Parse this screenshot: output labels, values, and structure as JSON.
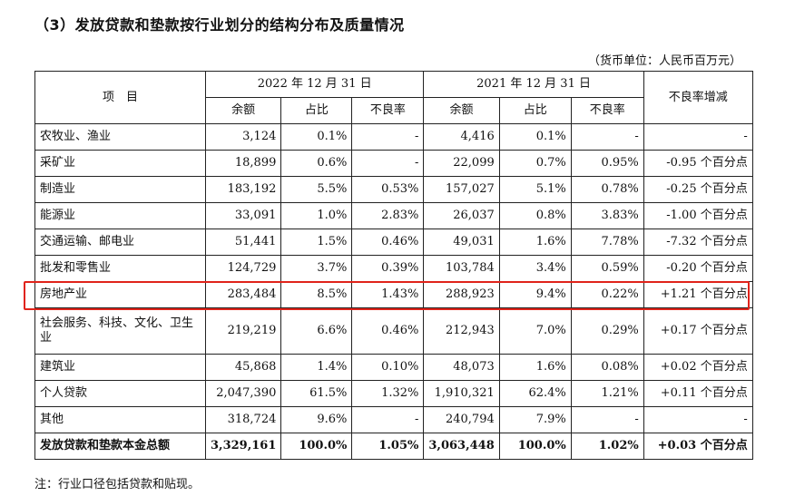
{
  "title": "（3）发放贷款和垫款按行业划分的结构分布及质量情况",
  "unit": "（货币单位：人民币百万元）",
  "header": {
    "item": "项　目",
    "period_2022": "2022 年 12 月 31 日",
    "period_2021": "2021 年 12 月 31 日",
    "npl_change": "不良率增减",
    "balance": "余额",
    "share": "占比",
    "npl": "不良率"
  },
  "rows": [
    {
      "name": "农牧业、渔业",
      "b22": "3,124",
      "s22": "0.1%",
      "n22": "-",
      "b21": "4,416",
      "s21": "0.1%",
      "n21": "-",
      "chg": "-"
    },
    {
      "name": "采矿业",
      "b22": "18,899",
      "s22": "0.6%",
      "n22": "-",
      "b21": "22,099",
      "s21": "0.7%",
      "n21": "0.95%",
      "chg": "-0.95 个百分点"
    },
    {
      "name": "制造业",
      "b22": "183,192",
      "s22": "5.5%",
      "n22": "0.53%",
      "b21": "157,027",
      "s21": "5.1%",
      "n21": "0.78%",
      "chg": "-0.25 个百分点"
    },
    {
      "name": "能源业",
      "b22": "33,091",
      "s22": "1.0%",
      "n22": "2.83%",
      "b21": "26,037",
      "s21": "0.8%",
      "n21": "3.83%",
      "chg": "-1.00 个百分点"
    },
    {
      "name": "交通运输、邮电业",
      "b22": "51,441",
      "s22": "1.5%",
      "n22": "0.46%",
      "b21": "49,031",
      "s21": "1.6%",
      "n21": "7.78%",
      "chg": "-7.32 个百分点"
    },
    {
      "name": "批发和零售业",
      "b22": "124,729",
      "s22": "3.7%",
      "n22": "0.39%",
      "b21": "103,784",
      "s21": "3.4%",
      "n21": "0.59%",
      "chg": "-0.20 个百分点"
    },
    {
      "name": "房地产业",
      "b22": "283,484",
      "s22": "8.5%",
      "n22": "1.43%",
      "b21": "288,923",
      "s21": "9.4%",
      "n21": "0.22%",
      "chg": "+1.21 个百分点"
    },
    {
      "name": "社会服务、科技、文化、卫生业",
      "b22": "219,219",
      "s22": "6.6%",
      "n22": "0.46%",
      "b21": "212,943",
      "s21": "7.0%",
      "n21": "0.29%",
      "chg": "+0.17 个百分点"
    },
    {
      "name": "建筑业",
      "b22": "45,868",
      "s22": "1.4%",
      "n22": "0.10%",
      "b21": "48,073",
      "s21": "1.6%",
      "n21": "0.08%",
      "chg": "+0.02 个百分点"
    },
    {
      "name": "个人贷款",
      "b22": "2,047,390",
      "s22": "61.5%",
      "n22": "1.32%",
      "b21": "1,910,321",
      "s21": "62.4%",
      "n21": "1.21%",
      "chg": "+0.11 个百分点"
    },
    {
      "name": "其他",
      "b22": "318,724",
      "s22": "9.6%",
      "n22": "-",
      "b21": "240,794",
      "s21": "7.9%",
      "n21": "-",
      "chg": "-"
    }
  ],
  "total": {
    "name": "发放贷款和垫款本金总额",
    "b22": "3,329,161",
    "s22": "100.0%",
    "n22": "1.05%",
    "b21": "3,063,448",
    "s21": "100.0%",
    "n21": "1.02%",
    "chg": "+0.03 个百分点"
  },
  "note": "注：行业口径包括贷款和贴现。",
  "highlight_color": "#e0231a"
}
